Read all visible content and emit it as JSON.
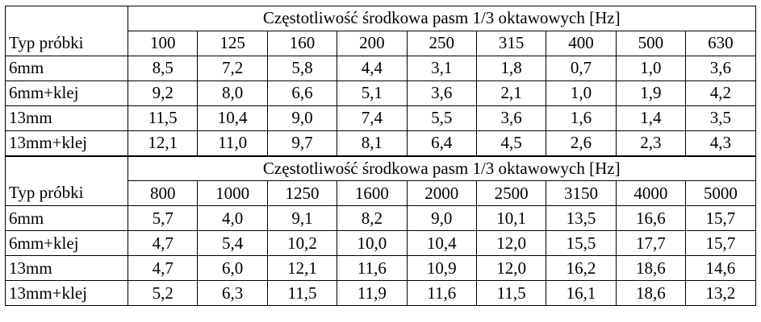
{
  "header_title": "Częstotliwość środkowa pasm 1/3 oktawowych [Hz]",
  "row_header": "Typ próbki",
  "blocks": [
    {
      "frequencies": [
        "100",
        "125",
        "160",
        "200",
        "250",
        "315",
        "400",
        "500",
        "630"
      ],
      "rows": [
        {
          "sample": "6mm",
          "values": [
            "8,5",
            "7,2",
            "5,8",
            "4,4",
            "3,1",
            "1,8",
            "0,7",
            "1,0",
            "3,6"
          ]
        },
        {
          "sample": "6mm+klej",
          "values": [
            "9,2",
            "8,0",
            "6,6",
            "5,1",
            "3,6",
            "2,1",
            "1,0",
            "1,9",
            "4,2"
          ]
        },
        {
          "sample": "13mm",
          "values": [
            "11,5",
            "10,4",
            "9,0",
            "7,4",
            "5,5",
            "3,6",
            "1,6",
            "1,4",
            "3,5"
          ]
        },
        {
          "sample": "13mm+klej",
          "values": [
            "12,1",
            "11,0",
            "9,7",
            "8,1",
            "6,4",
            "4,5",
            "2,6",
            "2,3",
            "4,3"
          ]
        }
      ]
    },
    {
      "frequencies": [
        "800",
        "1000",
        "1250",
        "1600",
        "2000",
        "2500",
        "3150",
        "4000",
        "5000"
      ],
      "rows": [
        {
          "sample": "6mm",
          "values": [
            "5,7",
            "4,0",
            "9,1",
            "8,2",
            "9,0",
            "10,1",
            "13,5",
            "16,6",
            "15,7"
          ]
        },
        {
          "sample": "6mm+klej",
          "values": [
            "4,7",
            "5,4",
            "10,2",
            "10,0",
            "10,4",
            "12,0",
            "15,5",
            "17,7",
            "15,7"
          ]
        },
        {
          "sample": "13mm",
          "values": [
            "4,7",
            "6,0",
            "12,1",
            "11,6",
            "10,9",
            "12,0",
            "16,2",
            "18,6",
            "14,6"
          ]
        },
        {
          "sample": "13mm+klej",
          "values": [
            "5,2",
            "6,3",
            "11,5",
            "11,9",
            "11,6",
            "11,5",
            "16,1",
            "18,6",
            "13,2"
          ]
        }
      ]
    }
  ]
}
